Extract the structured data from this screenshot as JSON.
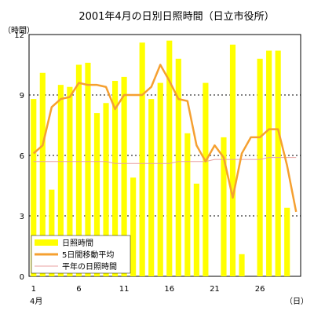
{
  "chart_data": {
    "type": "bar",
    "title": "2001年4月の日別日照時間（日立市役所）",
    "ylabel": "（時間）",
    "xunit": "（日）",
    "month_label": "4月",
    "ylim": [
      0,
      12
    ],
    "yticks": [
      0,
      3,
      6,
      9,
      12
    ],
    "xtick_days": [
      1,
      6,
      11,
      16,
      21,
      26
    ],
    "grid": "horizontal dotted",
    "legend_position": "bottom-left",
    "days": [
      1,
      2,
      3,
      4,
      5,
      6,
      7,
      8,
      9,
      10,
      11,
      12,
      13,
      14,
      15,
      16,
      17,
      18,
      19,
      20,
      21,
      22,
      23,
      24,
      25,
      26,
      27,
      28,
      29,
      30
    ],
    "series": [
      {
        "name": "日照時間",
        "kind": "bar",
        "color": "#ffff00",
        "values": [
          8.8,
          10.1,
          4.3,
          9.5,
          9.4,
          10.5,
          10.6,
          8.1,
          8.6,
          9.7,
          9.9,
          4.9,
          11.6,
          8.8,
          9.6,
          11.7,
          10.8,
          7.1,
          4.6,
          9.6,
          0.0,
          6.9,
          11.5,
          1.1,
          0.0,
          10.8,
          11.2,
          11.2,
          3.4,
          0.0
        ]
      },
      {
        "name": "5日間移動平均",
        "kind": "line",
        "color": "#f5a030",
        "values": [
          6.1,
          6.5,
          8.4,
          8.8,
          8.9,
          9.6,
          9.5,
          9.5,
          9.4,
          8.3,
          9.0,
          9.0,
          9.0,
          9.4,
          10.5,
          9.7,
          8.8,
          8.7,
          6.5,
          5.7,
          6.5,
          5.9,
          3.9,
          6.1,
          6.9,
          6.9,
          7.3,
          7.3,
          5.5,
          3.2
        ]
      },
      {
        "name": "平年の日照時間",
        "kind": "line",
        "color": "#e8a0a0",
        "values": [
          5.7,
          5.7,
          5.7,
          5.7,
          5.7,
          5.7,
          5.7,
          5.7,
          5.7,
          5.6,
          5.6,
          5.6,
          5.6,
          5.6,
          5.6,
          5.6,
          5.7,
          5.7,
          5.7,
          5.7,
          5.8,
          5.8,
          5.8,
          5.8,
          5.8,
          5.8,
          5.9,
          5.9,
          5.9,
          5.9
        ]
      }
    ]
  }
}
